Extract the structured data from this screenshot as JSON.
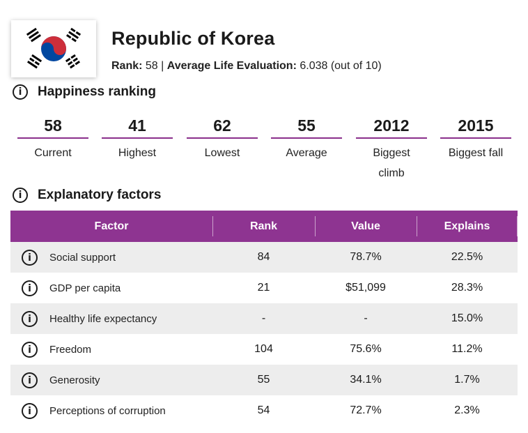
{
  "country": {
    "name": "Republic of Korea",
    "rank_label": "Rank:",
    "rank_value": "58",
    "separator": "|",
    "avg_label": "Average Life Evaluation:",
    "avg_value": "6.038 (out of 10)"
  },
  "flag": {
    "icon": "south-korea-flag",
    "red": "#cd2e3a",
    "blue": "#0047a0",
    "black": "#000000"
  },
  "sections": {
    "happiness": "Happiness ranking",
    "factors": "Explanatory factors"
  },
  "info_glyph": "i",
  "stats": [
    {
      "value": "58",
      "label": "Current"
    },
    {
      "value": "41",
      "label": "Highest"
    },
    {
      "value": "62",
      "label": "Lowest"
    },
    {
      "value": "55",
      "label": "Average"
    },
    {
      "value": "2012",
      "label": "Biggest climb"
    },
    {
      "value": "2015",
      "label": "Biggest fall"
    }
  ],
  "table": {
    "headers": [
      "Factor",
      "Rank",
      "Value",
      "Explains"
    ],
    "rows": [
      {
        "factor": "Social support",
        "rank": "84",
        "value": "78.7%",
        "explains": "22.5%"
      },
      {
        "factor": "GDP per capita",
        "rank": "21",
        "value": "$51,099",
        "explains": "28.3%"
      },
      {
        "factor": "Healthy life expectancy",
        "rank": "-",
        "value": "-",
        "explains": "15.0%"
      },
      {
        "factor": "Freedom",
        "rank": "104",
        "value": "75.6%",
        "explains": "11.2%"
      },
      {
        "factor": "Generosity",
        "rank": "55",
        "value": "34.1%",
        "explains": "1.7%"
      },
      {
        "factor": "Perceptions of corruption",
        "rank": "54",
        "value": "72.7%",
        "explains": "2.3%"
      }
    ]
  },
  "colors": {
    "accent": "#8e3491",
    "row_alt": "#ededed"
  }
}
